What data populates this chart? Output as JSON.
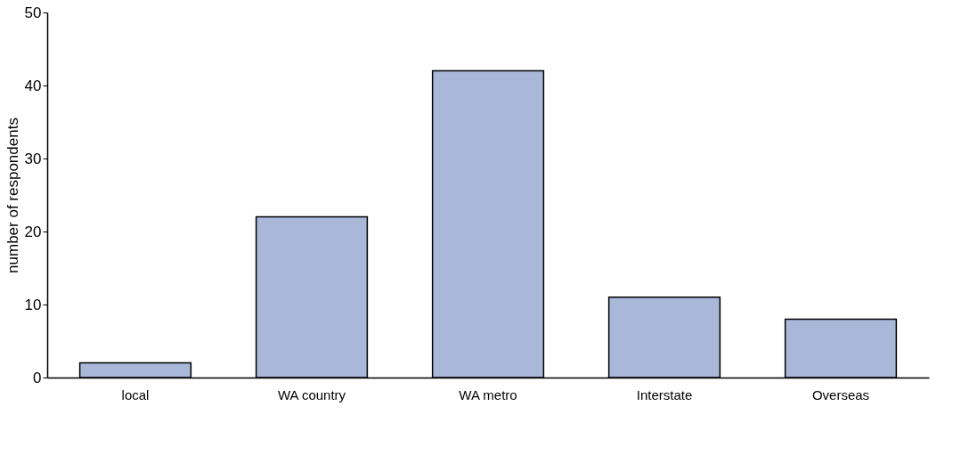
{
  "chart_data": {
    "type": "bar",
    "ylabel": "number of respondents",
    "categories": [
      "local",
      "WA country",
      "WA metro",
      "Interstate",
      "Overseas"
    ],
    "values": [
      2,
      22,
      42,
      11,
      8
    ],
    "color": "#a9b7d9",
    "ylim": [
      0,
      50
    ],
    "yticks": [
      0,
      10,
      20,
      30,
      40,
      50
    ],
    "grid": false
  }
}
